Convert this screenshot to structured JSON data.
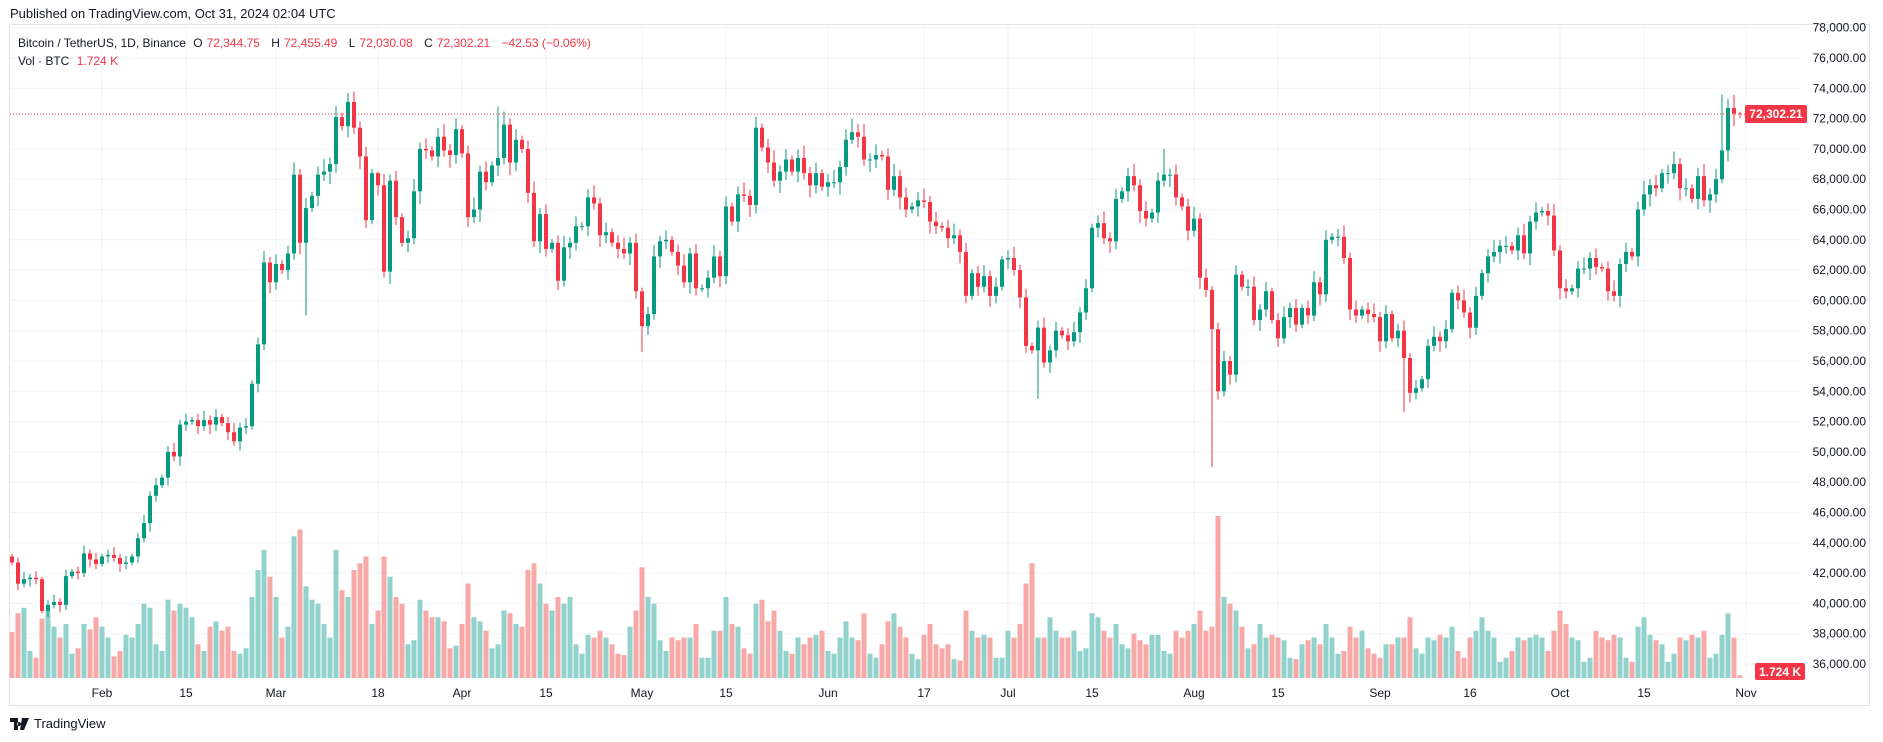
{
  "published": "Published on TradingView.com, Oct 31, 2024 02:04 UTC",
  "legend": {
    "symbol": "Bitcoin / TetherUS, 1D, Binance",
    "o_label": "O",
    "o": "72,344.75",
    "h_label": "H",
    "h": "72,455.49",
    "l_label": "L",
    "l": "72,030.08",
    "c_label": "C",
    "c": "72,302.21",
    "change": "−42.53 (−0.06%)",
    "vol_label": "Vol · BTC",
    "vol": "1.724 K"
  },
  "price_label": "72,302.21",
  "volume_label": "1.724 K",
  "logo": "TradingView",
  "colors": {
    "up": "#089981",
    "down": "#f23645",
    "up_vol": "#92d2cc",
    "down_vol": "#f7a9a7",
    "grid": "#f0f3fa"
  },
  "chart_data": {
    "type": "candlestick",
    "title": "Bitcoin / TetherUS, 1D, Binance",
    "start_date": "2024-01-17",
    "ylim": [
      36000,
      78000
    ],
    "y_ticks": [
      "78,000.00",
      "76,000.00",
      "74,000.00",
      "72,000.00",
      "70,000.00",
      "68,000.00",
      "66,000.00",
      "64,000.00",
      "62,000.00",
      "60,000.00",
      "58,000.00",
      "56,000.00",
      "54,000.00",
      "52,000.00",
      "50,000.00",
      "48,000.00",
      "46,000.00",
      "44,000.00",
      "42,000.00",
      "40,000.00",
      "38,000.00",
      "36,000.00"
    ],
    "x_ticks": [
      {
        "label": "Feb",
        "day": 15
      },
      {
        "label": "15",
        "day": 29
      },
      {
        "label": "Mar",
        "day": 44
      },
      {
        "label": "18",
        "day": 61
      },
      {
        "label": "Apr",
        "day": 75
      },
      {
        "label": "15",
        "day": 89
      },
      {
        "label": "May",
        "day": 105
      },
      {
        "label": "15",
        "day": 119
      },
      {
        "label": "Jun",
        "day": 136
      },
      {
        "label": "17",
        "day": 152
      },
      {
        "label": "Jul",
        "day": 166
      },
      {
        "label": "15",
        "day": 180
      },
      {
        "label": "Aug",
        "day": 197
      },
      {
        "label": "15",
        "day": 211
      },
      {
        "label": "Sep",
        "day": 228
      },
      {
        "label": "16",
        "day": 243
      },
      {
        "label": "Oct",
        "day": 258
      },
      {
        "label": "15",
        "day": 272
      },
      {
        "label": "Nov",
        "day": 289
      }
    ],
    "first_open": 43100,
    "close_k": [
      42.7,
      41.3,
      41.6,
      41.7,
      41.6,
      39.5,
      39.9,
      40.1,
      39.9,
      41.8,
      42.1,
      42.0,
      43.3,
      42.9,
      42.6,
      43.1,
      43.2,
      43.0,
      42.6,
      42.7,
      43.1,
      44.3,
      45.3,
      47.1,
      47.8,
      48.3,
      50.0,
      49.7,
      51.8,
      52.0,
      52.1,
      51.7,
      52.1,
      51.8,
      52.3,
      51.9,
      51.3,
      50.7,
      51.6,
      51.7,
      54.5,
      57.1,
      62.5,
      61.2,
      62.4,
      62.0,
      63.1,
      68.3,
      63.8,
      66.1,
      66.9,
      68.3,
      68.5,
      69.0,
      72.1,
      71.5,
      73.1,
      71.4,
      69.5,
      65.3,
      68.4,
      67.6,
      61.9,
      67.9,
      65.5,
      63.8,
      64.1,
      67.2,
      70.0,
      69.9,
      69.5,
      70.8,
      69.9,
      69.6,
      71.3,
      69.7,
      65.5,
      66.0,
      68.5,
      67.8,
      68.9,
      69.4,
      71.6,
      69.1,
      70.6,
      70.0,
      67.1,
      63.9,
      65.7,
      63.4,
      63.8,
      61.3,
      63.5,
      63.8,
      64.9,
      64.9,
      66.8,
      66.4,
      64.3,
      64.5,
      63.8,
      63.4,
      63.1,
      63.8,
      60.6,
      58.3,
      59.1,
      62.9,
      63.9,
      64.0,
      63.2,
      62.3,
      61.2,
      63.1,
      60.8,
      60.8,
      61.5,
      62.9,
      61.6,
      66.2,
      65.2,
      67.0,
      66.9,
      66.3,
      71.4,
      70.1,
      69.1,
      67.9,
      68.5,
      69.3,
      68.5,
      69.4,
      68.4,
      67.6,
      68.4,
      67.5,
      67.8,
      67.8,
      68.8,
      70.6,
      71.1,
      70.8,
      69.3,
      69.3,
      69.6,
      69.5,
      67.3,
      68.2,
      66.8,
      66.0,
      66.2,
      66.6,
      66.5,
      65.2,
      64.9,
      64.8,
      64.1,
      64.3,
      63.2,
      60.3,
      61.8,
      60.9,
      61.6,
      60.3,
      60.9,
      62.7,
      62.8,
      62.0,
      60.2,
      57.0,
      56.7,
      58.2,
      55.9,
      56.7,
      58.0,
      57.7,
      57.3,
      57.9,
      59.2,
      60.8,
      64.8,
      65.1,
      64.1,
      63.9,
      66.7,
      67.2,
      68.2,
      67.6,
      65.9,
      65.4,
      65.8,
      67.9,
      68.3,
      68.3,
      66.8,
      66.2,
      64.6,
      65.4,
      61.5,
      60.7,
      58.1,
      54.0,
      56.0,
      55.1,
      61.7,
      60.9,
      60.9,
      58.7,
      59.4,
      60.6,
      58.7,
      57.5,
      58.9,
      59.5,
      58.4,
      59.5,
      59.0,
      61.2,
      60.4,
      64.0,
      64.2,
      64.2,
      62.8,
      59.4,
      59.0,
      59.4,
      59.1,
      58.9,
      57.3,
      59.1,
      57.5,
      58.0,
      56.2,
      53.9,
      54.2,
      54.8,
      57.0,
      57.6,
      57.3,
      58.1,
      60.5,
      60.0,
      59.2,
      58.2,
      60.3,
      61.8,
      62.9,
      63.2,
      63.6,
      63.6,
      63.3,
      64.3,
      63.1,
      65.2,
      65.8,
      65.9,
      65.6,
      63.3,
      60.8,
      60.6,
      60.8,
      62.1,
      62.1,
      62.8,
      62.2,
      62.1,
      60.6,
      60.3,
      62.4,
      63.2,
      62.9,
      66.0,
      67.0,
      67.6,
      67.4,
      68.4,
      68.4,
      69.0,
      67.4,
      67.4,
      66.7,
      68.2,
      66.6,
      67.0,
      68.0,
      69.9,
      72.7,
      72.34,
      72.3
    ],
    "wick_overrides": [
      {
        "day": 49,
        "low": 59.0
      },
      {
        "day": 57,
        "high": 73.8
      },
      {
        "day": 61,
        "high": 68.5
      },
      {
        "day": 81,
        "high": 72.8
      },
      {
        "day": 105,
        "low": 56.6
      },
      {
        "day": 140,
        "high": 72.0
      },
      {
        "day": 171,
        "low": 53.5
      },
      {
        "day": 192,
        "high": 70.0
      },
      {
        "day": 200,
        "low": 49.0
      },
      {
        "day": 232,
        "low": 52.6
      },
      {
        "day": 272,
        "high": 67.9
      },
      {
        "day": 285,
        "high": 73.6
      },
      {
        "day": 288,
        "high": 72.46,
        "low": 72.03
      },
      {
        "day": 287,
        "low": 71.5
      }
    ],
    "volume_k": [
      34,
      48,
      52,
      20,
      15,
      44,
      50,
      38,
      30,
      40,
      18,
      22,
      40,
      36,
      45,
      38,
      30,
      16,
      20,
      32,
      30,
      40,
      55,
      52,
      25,
      20,
      58,
      50,
      55,
      52,
      45,
      25,
      20,
      38,
      42,
      35,
      38,
      20,
      18,
      22,
      60,
      80,
      95,
      75,
      60,
      30,
      38,
      105,
      110,
      68,
      58,
      55,
      40,
      30,
      95,
      65,
      60,
      80,
      85,
      90,
      40,
      50,
      90,
      75,
      60,
      55,
      25,
      28,
      58,
      50,
      45,
      45,
      42,
      22,
      24,
      40,
      70,
      45,
      42,
      35,
      22,
      25,
      50,
      48,
      40,
      38,
      80,
      85,
      70,
      55,
      50,
      60,
      55,
      60,
      25,
      18,
      32,
      30,
      35,
      30,
      25,
      18,
      17,
      38,
      50,
      82,
      60,
      55,
      28,
      20,
      30,
      28,
      30,
      30,
      40,
      15,
      15,
      35,
      35,
      60,
      40,
      38,
      22,
      18,
      55,
      58,
      42,
      50,
      35,
      20,
      18,
      30,
      25,
      30,
      32,
      35,
      20,
      18,
      30,
      42,
      30,
      28,
      48,
      18,
      15,
      25,
      42,
      48,
      38,
      30,
      18,
      14,
      32,
      40,
      25,
      22,
      25,
      14,
      13,
      50,
      35,
      30,
      32,
      30,
      15,
      15,
      35,
      30,
      40,
      70,
      85,
      30,
      30,
      45,
      35,
      30,
      30,
      35,
      20,
      22,
      48,
      45,
      35,
      30,
      40,
      25,
      22,
      33,
      28,
      25,
      32,
      32,
      20,
      18,
      35,
      30,
      35,
      40,
      50,
      35,
      38,
      120,
      60,
      55,
      50,
      38,
      22,
      25,
      40,
      30,
      32,
      30,
      28,
      15,
      14,
      25,
      28,
      30,
      25,
      40,
      30,
      18,
      20,
      38,
      30,
      35,
      22,
      18,
      15,
      25,
      25,
      30,
      30,
      45,
      22,
      18,
      30,
      28,
      32,
      30,
      38,
      20,
      15,
      30,
      35,
      45,
      35,
      30,
      12,
      15,
      20,
      30,
      28,
      30,
      32,
      30,
      20,
      35,
      50,
      40,
      30,
      28,
      12,
      15,
      35,
      30,
      28,
      32,
      30,
      15,
      12,
      38,
      45,
      32,
      28,
      25,
      12,
      18,
      30,
      28,
      32,
      30,
      35,
      15,
      18,
      32,
      48,
      30,
      2
    ],
    "last_price": 72302.21
  }
}
